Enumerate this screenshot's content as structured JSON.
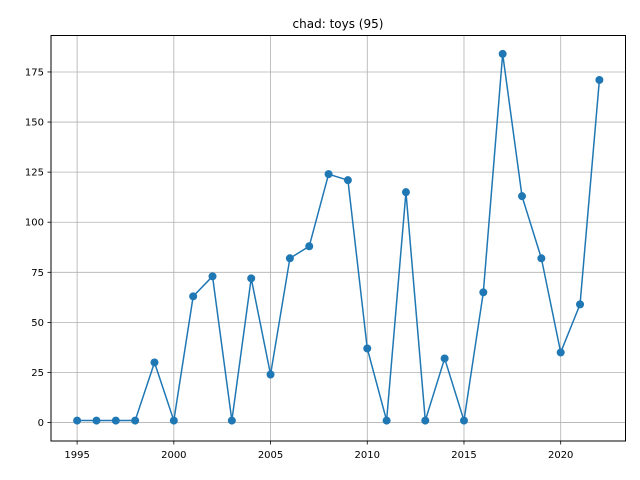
{
  "chart_data": {
    "type": "line",
    "title": "chad: toys (95)",
    "xlabel": "",
    "ylabel": "",
    "xlim": [
      1993.65,
      2023.35
    ],
    "ylim": [
      -9.2,
      193.2
    ],
    "xticks": [
      1995,
      2000,
      2005,
      2010,
      2015,
      2020
    ],
    "yticks": [
      0,
      25,
      50,
      75,
      100,
      125,
      150,
      175
    ],
    "grid": true,
    "legend": "none",
    "colors": {
      "series": "#1f77b4",
      "grid": "#b0b0b0",
      "axes": "#000000"
    },
    "series": [
      {
        "x": [
          1995,
          1996,
          1997,
          1998,
          1999,
          2000,
          2001,
          2002,
          2003,
          2004,
          2005,
          2006,
          2007,
          2008,
          2009,
          2010,
          2011,
          2012,
          2013,
          2014,
          2015,
          2016,
          2017,
          2018,
          2019,
          2020,
          2021,
          2022
        ],
        "values": [
          1,
          1,
          1,
          1,
          30,
          1,
          63,
          73,
          1,
          72,
          24,
          82,
          88,
          124,
          121,
          37,
          1,
          115,
          1,
          32,
          1,
          65,
          184,
          113,
          82,
          35,
          59,
          171
        ]
      }
    ]
  }
}
